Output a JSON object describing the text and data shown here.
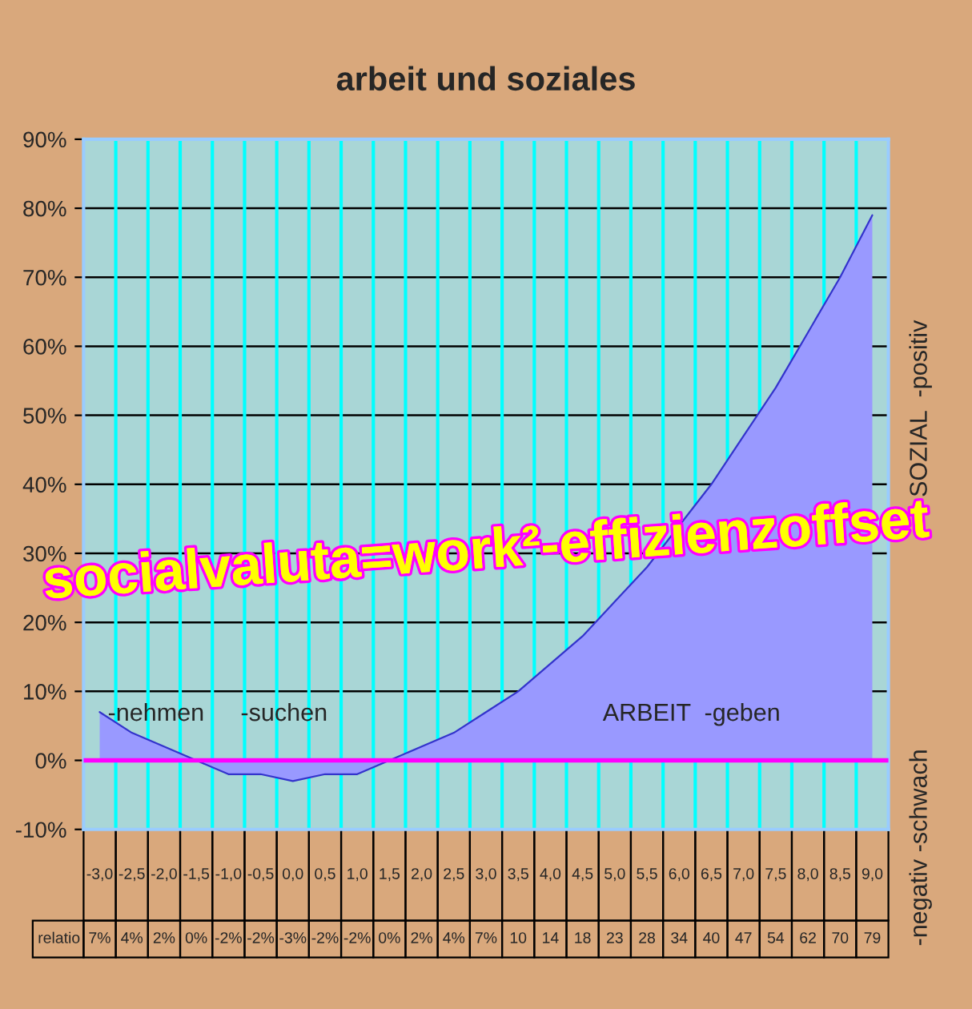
{
  "chart_data": {
    "type": "area",
    "title": "arbeit und soziales",
    "categories": [
      "-3,0",
      "-2,5",
      "-2,0",
      "-1,5",
      "-1,0",
      "-0,5",
      "0,0",
      "0,5",
      "1,0",
      "1,5",
      "2,0",
      "2,5",
      "3,0",
      "3,5",
      "4,0",
      "4,5",
      "5,0",
      "5,5",
      "6,0",
      "6,5",
      "7,0",
      "7,5",
      "8,0",
      "8,5",
      "9,0"
    ],
    "series": [
      {
        "name": "relatio",
        "color": "#9999ff",
        "values": [
          7,
          4,
          2,
          0,
          -2,
          -2,
          -3,
          -2,
          -2,
          0,
          2,
          4,
          7,
          10,
          14,
          18,
          23,
          28,
          34,
          40,
          47,
          54,
          62,
          70,
          79
        ],
        "value_labels": [
          "7%",
          "4%",
          "2%",
          "0%",
          "-2%",
          "-2%",
          "-3%",
          "-2%",
          "-2%",
          "0%",
          "2%",
          "4%",
          "7%",
          "10",
          "14",
          "18",
          "23",
          "28",
          "34",
          "40",
          "47",
          "54",
          "62",
          "70",
          "79"
        ]
      }
    ],
    "ylim": [
      -10,
      90
    ],
    "yticks": [
      {
        "value": -10,
        "label": "-10%"
      },
      {
        "value": 0,
        "label": "0%"
      },
      {
        "value": 10,
        "label": "10%"
      },
      {
        "value": 20,
        "label": "20%"
      },
      {
        "value": 30,
        "label": "30%"
      },
      {
        "value": 40,
        "label": "40%"
      },
      {
        "value": 50,
        "label": "50%"
      },
      {
        "value": 60,
        "label": "60%"
      },
      {
        "value": 70,
        "label": "70%"
      },
      {
        "value": 80,
        "label": "80%"
      },
      {
        "value": 90,
        "label": "90%"
      }
    ],
    "ref_lines": [
      {
        "axis": "y",
        "value": 0,
        "color": "#ff00ff"
      }
    ],
    "grid": true,
    "annotations": [
      "-nehmen",
      "-suchen",
      "ARBEIT  -geben",
      "socialvaluta=work²-effizienzoffset",
      "SOZIAL  -positiv",
      "-negativ -schwach"
    ]
  }
}
